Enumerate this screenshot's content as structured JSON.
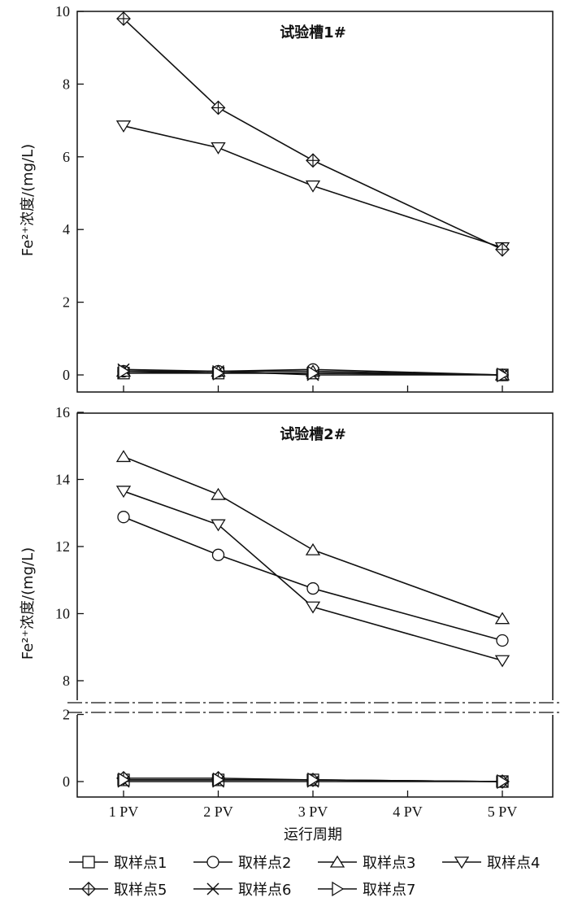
{
  "chart_data": [
    {
      "type": "line",
      "title": "试验槽1#",
      "ylabel": "Fe²⁺浓度/(mg/L)",
      "xlabel": "",
      "categories": [
        "1 PV",
        "2 PV",
        "3 PV",
        "4 PV",
        "5 PV"
      ],
      "x": [
        1,
        2,
        3,
        5
      ],
      "ylim": [
        0,
        10
      ],
      "yticks": [
        0,
        2,
        4,
        6,
        8,
        10
      ],
      "grid": false,
      "series": [
        {
          "name": "取样点1",
          "marker": "square",
          "values": [
            0.05,
            0.05,
            0.05,
            0.0
          ]
        },
        {
          "name": "取样点2",
          "marker": "circle",
          "values": [
            0.1,
            0.1,
            0.15,
            0.0
          ]
        },
        {
          "name": "取样点3",
          "marker": "triangle-up",
          "values": [
            0.1,
            0.1,
            0.1,
            0.0
          ]
        },
        {
          "name": "取样点4",
          "marker": "triangle-down",
          "values": [
            6.85,
            6.25,
            5.2,
            3.5
          ]
        },
        {
          "name": "取样点5",
          "marker": "diamond-cross",
          "values": [
            9.8,
            7.35,
            5.9,
            3.45
          ]
        },
        {
          "name": "取样点6",
          "marker": "x-cross",
          "values": [
            0.15,
            0.1,
            0.0,
            0.0
          ]
        },
        {
          "name": "取样点7",
          "marker": "triangle-right",
          "values": [
            0.1,
            0.05,
            0.05,
            0.0
          ]
        }
      ]
    },
    {
      "type": "line",
      "title": "试验槽2#",
      "ylabel": "Fe²⁺浓度/(mg/L)",
      "xlabel": "运行周期",
      "categories": [
        "1 PV",
        "2 PV",
        "3 PV",
        "4 PV",
        "5 PV"
      ],
      "x": [
        1,
        2,
        3,
        5
      ],
      "ylim": [
        0,
        16
      ],
      "axis_break": [
        3,
        7.5
      ],
      "yticks": [
        0,
        2,
        8,
        10,
        12,
        14,
        16
      ],
      "grid": false,
      "series": [
        {
          "name": "取样点1",
          "marker": "square",
          "values": [
            0.05,
            0.05,
            0.05,
            0.0
          ]
        },
        {
          "name": "取样点2",
          "marker": "circle",
          "values": [
            12.88,
            11.75,
            10.75,
            9.2
          ]
        },
        {
          "name": "取样点3",
          "marker": "triangle-up",
          "values": [
            14.68,
            13.55,
            11.9,
            9.85
          ]
        },
        {
          "name": "取样点4",
          "marker": "triangle-down",
          "values": [
            13.65,
            12.65,
            10.2,
            8.6
          ]
        },
        {
          "name": "取样点5",
          "marker": "diamond-cross",
          "values": [
            0.1,
            0.1,
            0.05,
            0.0
          ]
        },
        {
          "name": "取样点6",
          "marker": "x-cross",
          "values": [
            0.0,
            0.0,
            0.0,
            0.0
          ]
        },
        {
          "name": "取样点7",
          "marker": "triangle-right",
          "values": [
            0.05,
            0.05,
            0.05,
            0.0
          ]
        }
      ]
    }
  ],
  "legend": {
    "placement": "bottom",
    "items": [
      "取样点1",
      "取样点2",
      "取样点3",
      "取样点4",
      "取样点5",
      "取样点6",
      "取样点7"
    ]
  }
}
